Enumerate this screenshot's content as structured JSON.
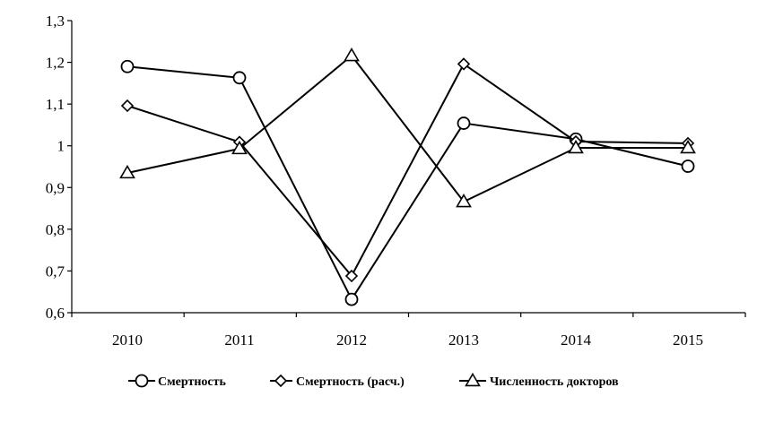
{
  "chart_data": {
    "type": "line",
    "title": "",
    "xlabel": "",
    "ylabel": "",
    "x": [
      "2010",
      "2011",
      "2012",
      "2013",
      "2014",
      "2015"
    ],
    "ylim": [
      0.6,
      1.3
    ],
    "yticks": [
      "0,6",
      "0,7",
      "0,8",
      "0,9",
      "1",
      "1,1",
      "1,2",
      "1,3"
    ],
    "ytick_values": [
      0.6,
      0.7,
      0.8,
      0.9,
      1.0,
      1.1,
      1.2,
      1.3
    ],
    "grid": false,
    "legend_position": "bottom",
    "series": [
      {
        "name": "Смертность",
        "marker": "circle",
        "color": "#000000",
        "values": [
          1.19,
          1.163,
          0.632,
          1.054,
          1.016,
          0.951
        ]
      },
      {
        "name": "Смертность (расч.)",
        "marker": "diamond",
        "color": "#000000",
        "values": [
          1.096,
          1.009,
          0.688,
          1.196,
          1.01,
          1.006
        ]
      },
      {
        "name": "Численность докторов",
        "marker": "triangle",
        "color": "#000000",
        "values": [
          0.935,
          0.993,
          1.216,
          0.866,
          0.995,
          0.995
        ]
      }
    ]
  }
}
